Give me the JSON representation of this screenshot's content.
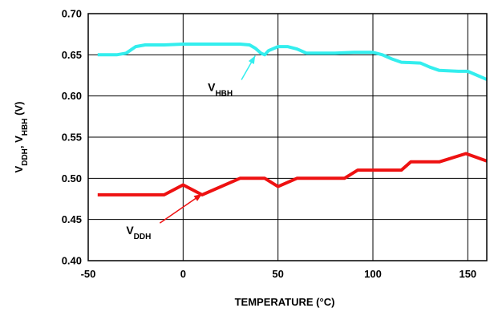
{
  "chart_data": {
    "type": "line",
    "title": "",
    "xlabel": "TEMPERATURE (°C)",
    "ylabel": {
      "parts": [
        {
          "text": "V",
          "sub": false
        },
        {
          "text": "DDH",
          "sub": true
        },
        {
          "text": ", V",
          "sub": false
        },
        {
          "text": "HBH",
          "sub": true
        },
        {
          "text": " (V)",
          "sub": false
        }
      ]
    },
    "xlim": [
      -50,
      160
    ],
    "ylim": [
      0.4,
      0.7
    ],
    "xticks": [
      -50,
      0,
      50,
      100,
      150
    ],
    "xtick_labels": [
      "-50",
      "0",
      "50",
      "100",
      "150"
    ],
    "yticks": [
      0.4,
      0.45,
      0.5,
      0.55,
      0.6,
      0.65,
      0.7
    ],
    "ytick_labels": [
      "0.40",
      "0.45",
      "0.50",
      "0.55",
      "0.60",
      "0.65",
      "0.70"
    ],
    "grid": true,
    "legend": "none",
    "series": [
      {
        "name": "VHBH",
        "color": "#33eeee",
        "label": {
          "main": "V",
          "sub": "HBH"
        },
        "points": [
          [
            -45,
            0.65
          ],
          [
            -35,
            0.65
          ],
          [
            -30,
            0.652
          ],
          [
            -25,
            0.66
          ],
          [
            -20,
            0.662
          ],
          [
            -10,
            0.662
          ],
          [
            0,
            0.663
          ],
          [
            10,
            0.663
          ],
          [
            20,
            0.663
          ],
          [
            30,
            0.663
          ],
          [
            35,
            0.662
          ],
          [
            38,
            0.658
          ],
          [
            41,
            0.652
          ],
          [
            43,
            0.65
          ],
          [
            45,
            0.655
          ],
          [
            50,
            0.66
          ],
          [
            55,
            0.66
          ],
          [
            60,
            0.657
          ],
          [
            65,
            0.652
          ],
          [
            80,
            0.652
          ],
          [
            90,
            0.653
          ],
          [
            100,
            0.653
          ],
          [
            105,
            0.65
          ],
          [
            110,
            0.645
          ],
          [
            115,
            0.641
          ],
          [
            125,
            0.64
          ],
          [
            130,
            0.635
          ],
          [
            135,
            0.631
          ],
          [
            145,
            0.63
          ],
          [
            150,
            0.63
          ],
          [
            155,
            0.625
          ],
          [
            160,
            0.62
          ]
        ]
      },
      {
        "name": "VDDH",
        "color": "#ee1111",
        "label": {
          "main": "V",
          "sub": "DDH"
        },
        "points": [
          [
            -45,
            0.48
          ],
          [
            -10,
            0.48
          ],
          [
            0,
            0.492
          ],
          [
            10,
            0.48
          ],
          [
            30,
            0.5
          ],
          [
            43,
            0.5
          ],
          [
            50,
            0.49
          ],
          [
            60,
            0.5
          ],
          [
            85,
            0.5
          ],
          [
            92,
            0.51
          ],
          [
            100,
            0.51
          ],
          [
            115,
            0.51
          ],
          [
            120,
            0.52
          ],
          [
            130,
            0.52
          ],
          [
            135,
            0.52
          ],
          [
            149,
            0.53
          ],
          [
            160,
            0.521
          ]
        ]
      }
    ],
    "annotations": [
      {
        "series": "VHBH",
        "text_pos": [
          13,
          0.606
        ],
        "arrow_to": [
          38,
          0.649
        ]
      },
      {
        "series": "VDDH",
        "text_pos": [
          -30,
          0.432
        ],
        "arrow_to": [
          10,
          0.481
        ]
      }
    ]
  }
}
